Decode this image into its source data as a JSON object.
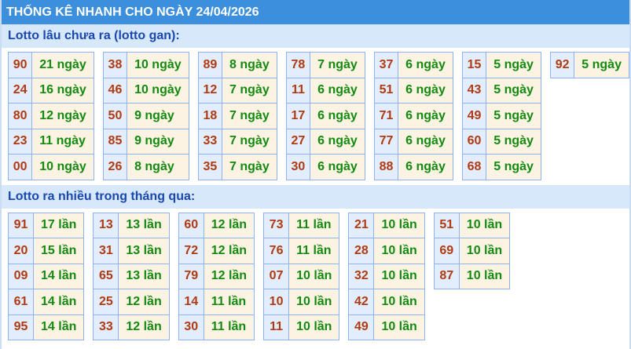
{
  "title": "THỐNG KÊ NHANH CHO NGÀY 24/04/2026",
  "gan": {
    "heading": "Lotto lâu chưa ra (lotto gan):",
    "tables": [
      [
        [
          "90",
          "21 ngày"
        ],
        [
          "24",
          "16 ngày"
        ],
        [
          "80",
          "12 ngày"
        ],
        [
          "23",
          "11 ngày"
        ],
        [
          "00",
          "10 ngày"
        ]
      ],
      [
        [
          "38",
          "10 ngày"
        ],
        [
          "46",
          "10 ngày"
        ],
        [
          "50",
          "9 ngày"
        ],
        [
          "85",
          "9 ngày"
        ],
        [
          "26",
          "8 ngày"
        ]
      ],
      [
        [
          "89",
          "8 ngày"
        ],
        [
          "12",
          "7 ngày"
        ],
        [
          "18",
          "7 ngày"
        ],
        [
          "33",
          "7 ngày"
        ],
        [
          "35",
          "7 ngày"
        ]
      ],
      [
        [
          "78",
          "7 ngày"
        ],
        [
          "11",
          "6 ngày"
        ],
        [
          "17",
          "6 ngày"
        ],
        [
          "27",
          "6 ngày"
        ],
        [
          "30",
          "6 ngày"
        ]
      ],
      [
        [
          "37",
          "6 ngày"
        ],
        [
          "51",
          "6 ngày"
        ],
        [
          "71",
          "6 ngày"
        ],
        [
          "77",
          "6 ngày"
        ],
        [
          "88",
          "6 ngày"
        ]
      ],
      [
        [
          "15",
          "5 ngày"
        ],
        [
          "43",
          "5 ngày"
        ],
        [
          "49",
          "5 ngày"
        ],
        [
          "60",
          "5 ngày"
        ],
        [
          "68",
          "5 ngày"
        ]
      ],
      [
        [
          "92",
          "5 ngày"
        ]
      ]
    ]
  },
  "frequent": {
    "heading": "Lotto ra nhiều trong tháng qua:",
    "tables": [
      [
        [
          "91",
          "17 lần"
        ],
        [
          "20",
          "15 lần"
        ],
        [
          "09",
          "14 lần"
        ],
        [
          "61",
          "14 lần"
        ],
        [
          "95",
          "14 lần"
        ]
      ],
      [
        [
          "13",
          "13 lần"
        ],
        [
          "31",
          "13 lần"
        ],
        [
          "65",
          "13 lần"
        ],
        [
          "25",
          "12 lần"
        ],
        [
          "33",
          "12 lần"
        ]
      ],
      [
        [
          "60",
          "12 lần"
        ],
        [
          "72",
          "12 lần"
        ],
        [
          "79",
          "12 lần"
        ],
        [
          "14",
          "11 lần"
        ],
        [
          "30",
          "11 lần"
        ]
      ],
      [
        [
          "73",
          "11 lần"
        ],
        [
          "76",
          "11 lần"
        ],
        [
          "07",
          "10 lần"
        ],
        [
          "10",
          "10 lần"
        ],
        [
          "11",
          "10 lần"
        ]
      ],
      [
        [
          "21",
          "10 lần"
        ],
        [
          "28",
          "10 lần"
        ],
        [
          "32",
          "10 lần"
        ],
        [
          "42",
          "10 lần"
        ],
        [
          "49",
          "10 lần"
        ]
      ],
      [
        [
          "51",
          "10 lần"
        ],
        [
          "69",
          "10 lần"
        ],
        [
          "87",
          "10 lần"
        ]
      ]
    ]
  }
}
